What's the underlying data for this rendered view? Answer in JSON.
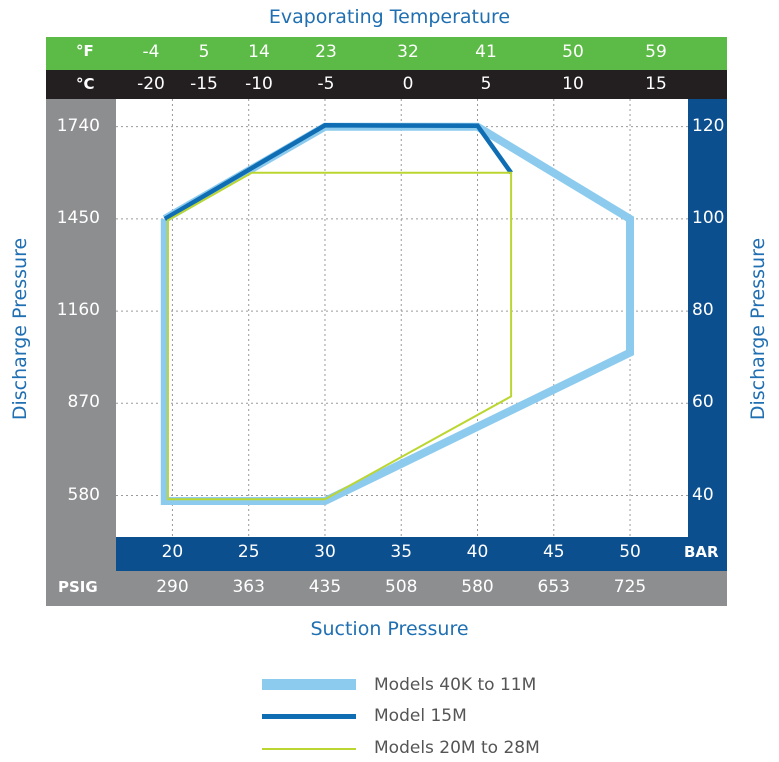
{
  "chart_data": {
    "type": "line",
    "title": "Evaporating Temperature",
    "xlabel": "Suction Pressure",
    "ylabel_left": "Discharge Pressure",
    "ylabel_right": "Discharge Pressure",
    "top_axis_f": {
      "unit": "°F",
      "ticks": [
        "-4",
        "5",
        "14",
        "23",
        "32",
        "41",
        "50",
        "59"
      ]
    },
    "top_axis_c": {
      "unit": "°C",
      "ticks": [
        "-20",
        "-15",
        "-10",
        "-5",
        "0",
        "5",
        "10",
        "15"
      ]
    },
    "bottom_axis_bar": {
      "unit": "BAR",
      "ticks": [
        "20",
        "25",
        "30",
        "35",
        "40",
        "45",
        "50"
      ]
    },
    "bottom_axis_psig": {
      "unit": "PSIG",
      "ticks": [
        "290",
        "363",
        "435",
        "508",
        "580",
        "653",
        "725"
      ]
    },
    "left_axis_psig": {
      "ticks": [
        "1740",
        "1450",
        "1160",
        "870",
        "580"
      ]
    },
    "right_axis_bar": {
      "ticks": [
        "120",
        "100",
        "80",
        "60",
        "40"
      ]
    },
    "xlim_bar": [
      16.3,
      53.8
    ],
    "ylim_bar": [
      31,
      126
    ],
    "grid": true,
    "series": [
      {
        "name": "Models 40K to 11M",
        "color": "#8ccbee",
        "x": [
          19.5,
          30,
          40,
          50,
          50,
          30,
          19.5,
          19.5
        ],
        "y": [
          100,
          120,
          120,
          100,
          71,
          38.8,
          38.8,
          100
        ]
      },
      {
        "name": "Model 15M",
        "color": "#0f6db3",
        "x": [
          19.5,
          30,
          40,
          42.2
        ],
        "y": [
          100,
          120.3,
          120.2,
          110
        ]
      },
      {
        "name": "Models 20M to 28M",
        "color": "#bcd631",
        "x": [
          25.2,
          42.2,
          42.2,
          30,
          19.7,
          19.7,
          25.2
        ],
        "y": [
          110,
          110,
          61.5,
          39.2,
          39.2,
          99.7,
          110
        ]
      }
    ]
  }
}
